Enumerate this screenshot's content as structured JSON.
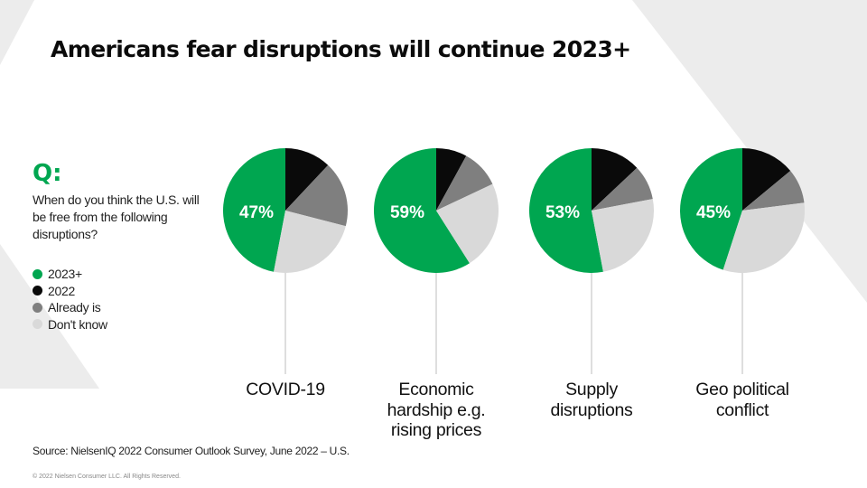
{
  "slide": {
    "title": "Americans fear disruptions will continue 2023+",
    "q_label": "Q:",
    "question": "When do you think the U.S. will be free from the following disruptions?",
    "source": "Source: NielsenIQ 2022 Consumer Outlook Survey, June 2022 – U.S.",
    "copyright": "© 2022 Nielsen Consumer LLC. All Rights Reserved."
  },
  "colors": {
    "background_shape": "#ececec",
    "q_mark": "#00a650",
    "label_text": "#ffffff",
    "leader_line": "#c8c8c8"
  },
  "legend": [
    {
      "label": "2023+",
      "color": "#00a650"
    },
    {
      "label": "2022",
      "color": "#0a0a0a"
    },
    {
      "label": "Already is",
      "color": "#7f7f7f"
    },
    {
      "label": "Don't know",
      "color": "#d9d9d9"
    }
  ],
  "chart_data": {
    "type": "pie",
    "series_names": [
      "2023+",
      "2022",
      "Already is",
      "Don't know"
    ],
    "categories": [
      "COVID-19",
      "Economic hardship e.g. rising prices",
      "Supply disruptions",
      "Geo political conflict"
    ],
    "category_labels": [
      "COVID-19",
      "Economic\nhardship e.g.\nrising prices",
      "Supply\ndisruptions",
      "Geo political\nconflict"
    ],
    "pies": [
      {
        "category": "COVID-19",
        "values": [
          47,
          12,
          17,
          24
        ],
        "label": "47%"
      },
      {
        "category": "Economic hardship e.g. rising prices",
        "values": [
          59,
          8,
          10,
          23
        ],
        "label": "59%"
      },
      {
        "category": "Supply disruptions",
        "values": [
          53,
          13,
          9,
          25
        ],
        "label": "53%"
      },
      {
        "category": "Geo political conflict",
        "values": [
          45,
          14,
          9,
          32
        ],
        "label": "45%"
      }
    ]
  }
}
